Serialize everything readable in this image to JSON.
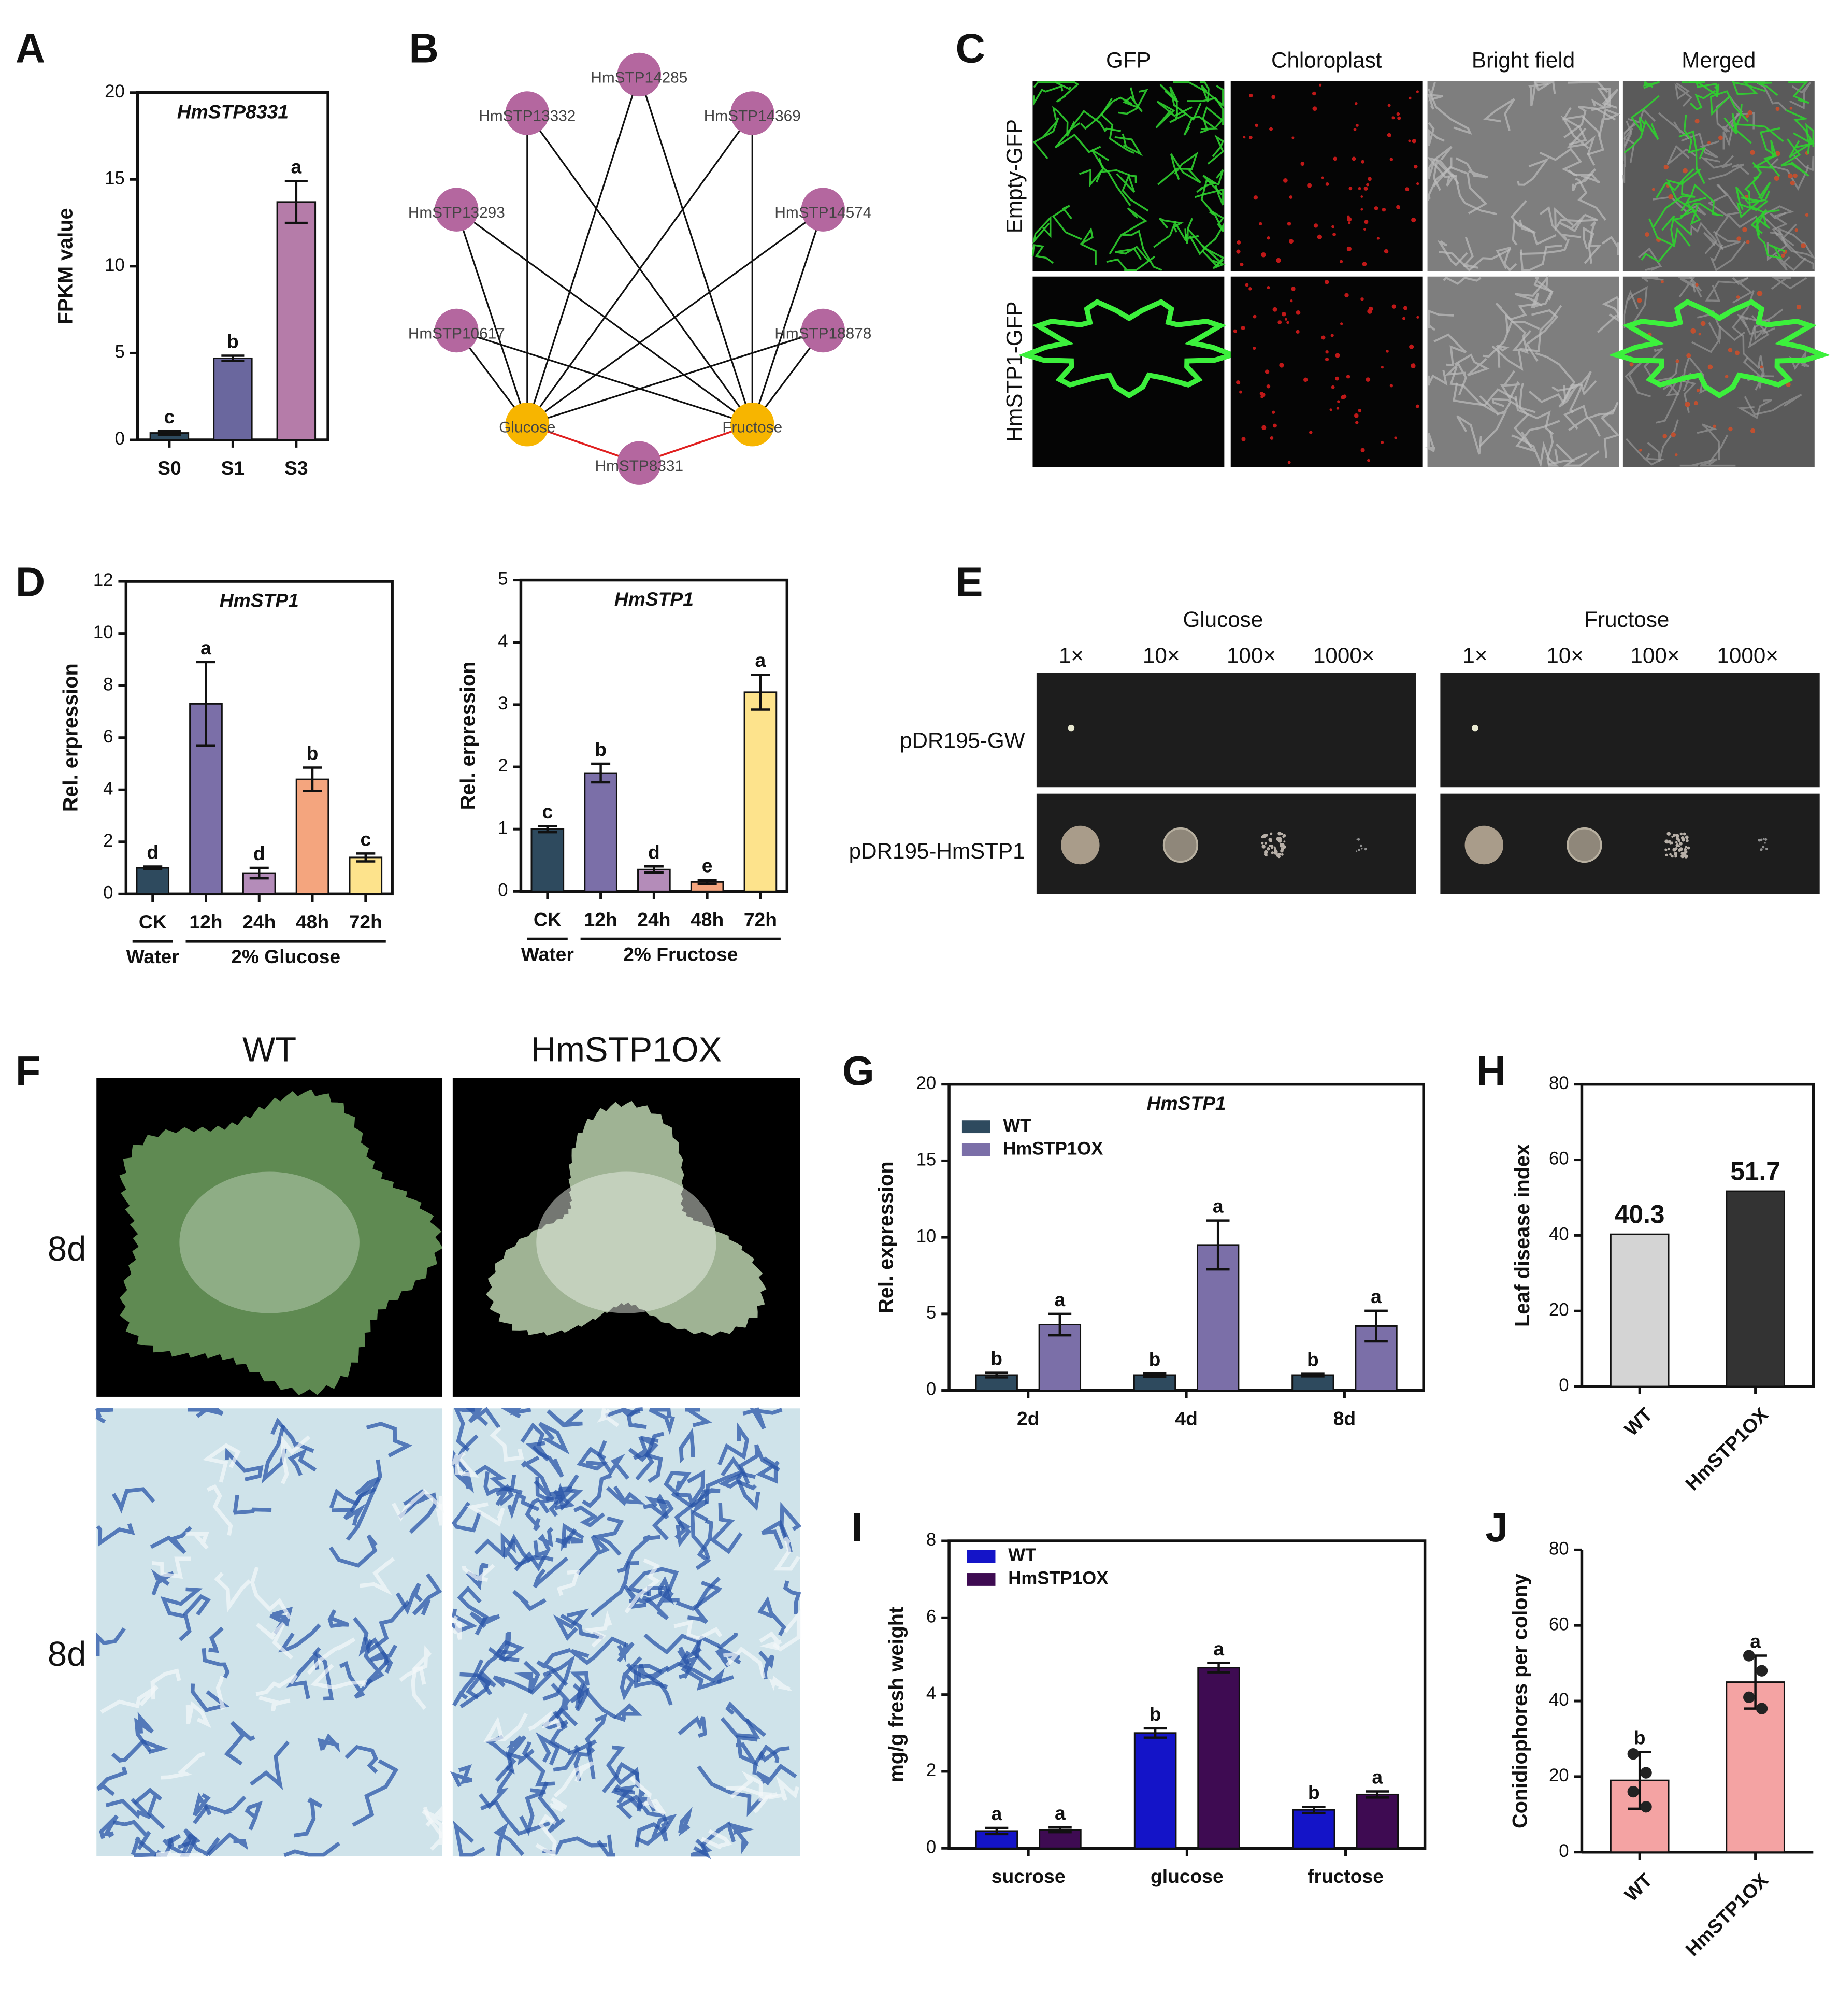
{
  "panel_labels": [
    "A",
    "B",
    "C",
    "D",
    "E",
    "F",
    "G",
    "H",
    "I",
    "J"
  ],
  "network": {
    "nodes": [
      "HmSTP14285",
      "HmSTP13332",
      "HmSTP14369",
      "HmSTP13293",
      "HmSTP14574",
      "HmSTP10617",
      "HmSTP18878",
      "Glucose",
      "Fructose",
      "HmSTP8331"
    ]
  },
  "microscopy": {
    "columns": [
      "GFP",
      "Chloroplast",
      "Bright field",
      "Merged"
    ],
    "rows": [
      "Empty-GFP",
      "HmSTP1-GFP"
    ]
  },
  "yeast": {
    "media": [
      "Glucose",
      "Fructose"
    ],
    "dilutions": [
      "1×",
      "10×",
      "100×",
      "1000×"
    ],
    "strains": [
      "pDR195-GW",
      "pDR195-HmSTP1"
    ]
  },
  "phenotype": {
    "columns": [
      "WT",
      "HmSTP1OX"
    ],
    "rows": [
      "8d",
      "8d"
    ]
  },
  "chart_data": [
    {
      "type": "bar",
      "title": "HmSTP8331",
      "ylabel": "FPKM value",
      "categories": [
        "S0",
        "S1",
        "S3"
      ],
      "ylim": [
        0,
        20
      ],
      "yticks": [
        0,
        5,
        10,
        15,
        20
      ],
      "frame": true,
      "series": [
        {
          "colors": [
            "#2e4a5e",
            "#6a679e",
            "#b57ca9"
          ],
          "values": [
            0.4,
            4.7,
            13.7
          ],
          "errors": [
            0.1,
            0.15,
            1.2
          ],
          "annotations": [
            "c",
            "b",
            "a"
          ]
        }
      ]
    },
    {
      "type": "bar",
      "title": "HmSTP1",
      "ylabel": "Rel. erpression",
      "categories": [
        "CK",
        "12h",
        "24h",
        "48h",
        "72h"
      ],
      "groups": [
        {
          "label": "Water",
          "categories": [
            "CK"
          ]
        },
        {
          "label": "2% Glucose",
          "categories": [
            "12h",
            "24h",
            "48h",
            "72h"
          ]
        }
      ],
      "ylim": [
        0,
        12
      ],
      "yticks": [
        0,
        2,
        4,
        6,
        8,
        10,
        12
      ],
      "frame": true,
      "series": [
        {
          "colors": [
            "#2e4a5e",
            "#7b6fa8",
            "#b48cb9",
            "#f4a57e",
            "#fde38c"
          ],
          "values": [
            1.0,
            7.3,
            0.8,
            4.4,
            1.4
          ],
          "errors": [
            0.05,
            1.6,
            0.2,
            0.45,
            0.15
          ],
          "annotations": [
            "d",
            "a",
            "d",
            "b",
            "c"
          ]
        }
      ]
    },
    {
      "type": "bar",
      "title": "HmSTP1",
      "ylabel": "Rel. erpression",
      "categories": [
        "CK",
        "12h",
        "24h",
        "48h",
        "72h"
      ],
      "groups": [
        {
          "label": "Water",
          "categories": [
            "CK"
          ]
        },
        {
          "label": "2% Fructose",
          "categories": [
            "12h",
            "24h",
            "48h",
            "72h"
          ]
        }
      ],
      "ylim": [
        0,
        5
      ],
      "yticks": [
        0,
        1,
        2,
        3,
        4,
        5
      ],
      "frame": true,
      "series": [
        {
          "colors": [
            "#2e4a5e",
            "#7b6fa8",
            "#b48cb9",
            "#f4a57e",
            "#fde38c"
          ],
          "values": [
            1.0,
            1.9,
            0.35,
            0.15,
            3.2
          ],
          "errors": [
            0.05,
            0.15,
            0.05,
            0.03,
            0.28
          ],
          "annotations": [
            "c",
            "b",
            "d",
            "e",
            "a"
          ]
        }
      ]
    },
    {
      "type": "bar",
      "title": "HmSTP1",
      "ylabel": "Rel. expression",
      "categories": [
        "2d",
        "4d",
        "8d"
      ],
      "ylim": [
        0,
        20
      ],
      "yticks": [
        0,
        5,
        10,
        15,
        20
      ],
      "frame": true,
      "legend": "top-left",
      "series": [
        {
          "name": "WT",
          "color": "#2e4a5e",
          "values": [
            1.0,
            1.0,
            1.0
          ],
          "errors": [
            0.15,
            0.1,
            0.08
          ],
          "annotations": [
            "b",
            "b",
            "b"
          ]
        },
        {
          "name": "HmSTP1OX",
          "color": "#7b6fa8",
          "values": [
            4.3,
            9.5,
            4.2
          ],
          "errors": [
            0.7,
            1.6,
            1.0
          ],
          "annotations": [
            "a",
            "a",
            "a"
          ]
        }
      ]
    },
    {
      "type": "bar",
      "ylabel": "Leaf disease index",
      "categories": [
        "WT",
        "HmSTP1OX"
      ],
      "ylim": [
        0,
        80
      ],
      "yticks": [
        0,
        20,
        40,
        60,
        80
      ],
      "frame": true,
      "xlabel_rotation": -45,
      "data_labels": true,
      "series": [
        {
          "colors": [
            "#d4d4d4",
            "#333333"
          ],
          "values": [
            40.3,
            51.7
          ]
        }
      ]
    },
    {
      "type": "bar",
      "ylabel": "mg/g fresh weight",
      "categories": [
        "sucrose",
        "glucose",
        "fructose"
      ],
      "ylim": [
        0,
        8
      ],
      "yticks": [
        0,
        2,
        4,
        6,
        8
      ],
      "frame": true,
      "legend": "top-left",
      "series": [
        {
          "name": "WT",
          "color": "#1414c8",
          "values": [
            0.45,
            3.0,
            1.0
          ],
          "errors": [
            0.08,
            0.12,
            0.08
          ],
          "annotations": [
            "a",
            "b",
            "b"
          ]
        },
        {
          "name": "HmSTP1OX",
          "color": "#3e0b52",
          "values": [
            0.48,
            4.7,
            1.4
          ],
          "errors": [
            0.06,
            0.12,
            0.08
          ],
          "annotations": [
            "a",
            "a",
            "a"
          ]
        }
      ]
    },
    {
      "type": "bar",
      "ylabel": "Conidiophores per colony",
      "categories": [
        "WT",
        "HmSTP1OX"
      ],
      "ylim": [
        0,
        80
      ],
      "yticks": [
        0,
        20,
        40,
        60,
        80
      ],
      "frame": false,
      "xlabel_rotation": -45,
      "series": [
        {
          "colors": [
            "#f4a3a3",
            "#f4a3a3"
          ],
          "values": [
            19,
            45
          ],
          "errors": [
            7.5,
            7
          ],
          "annotations": [
            "b",
            "a"
          ],
          "points": [
            [
              26,
              21,
              16,
              12
            ],
            [
              52,
              48,
              41,
              38
            ]
          ]
        }
      ]
    }
  ]
}
